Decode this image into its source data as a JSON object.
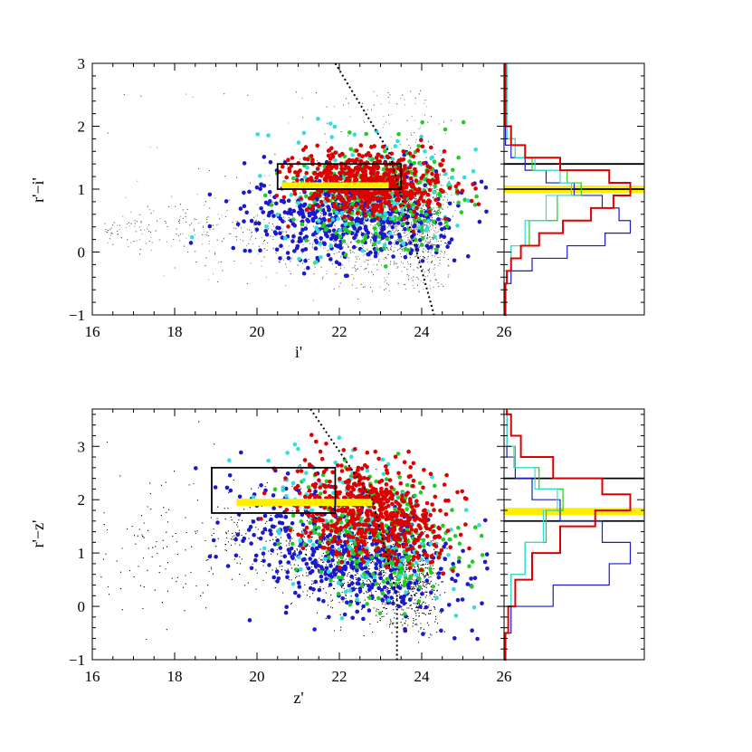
{
  "chart_data": [
    {
      "type": "scatter",
      "title": "",
      "xlabel": "i'",
      "ylabel": "r'−i'",
      "xlim": [
        16,
        26
      ],
      "ylim": [
        -1,
        3
      ],
      "xticks": [
        "16",
        "18",
        "20",
        "22",
        "24",
        "26"
      ],
      "yticks": [
        "−1",
        "0",
        "1",
        "2",
        "3"
      ],
      "grid": false,
      "legend": "none",
      "series_colors": {
        "field": "#000000",
        "red": "#dd0000",
        "green": "#22cc22",
        "blue": "#1a1acc",
        "cyan": "#33dddd",
        "band": "#ffee00"
      },
      "selection_box": {
        "x": [
          20.5,
          23.5
        ],
        "y": [
          1.0,
          1.4
        ]
      },
      "highlight_band": {
        "x": [
          20.6,
          23.2
        ],
        "y": 1.05
      },
      "completeness_line": [
        [
          21.9,
          3.0
        ],
        [
          23.2,
          1.6
        ],
        [
          24.3,
          -1.0
        ]
      ],
      "histogram": {
        "black_lines": [
          1.4,
          1.0
        ],
        "yellow_band": 1.0,
        "red": [
          [
            -1,
            0.01
          ],
          [
            -0.5,
            0.02
          ],
          [
            -0.3,
            0.05
          ],
          [
            -0.1,
            0.12
          ],
          [
            0.1,
            0.25
          ],
          [
            0.3,
            0.42
          ],
          [
            0.5,
            0.62
          ],
          [
            0.7,
            0.78
          ],
          [
            0.9,
            0.9
          ],
          [
            1.1,
            0.75
          ],
          [
            1.3,
            0.4
          ],
          [
            1.5,
            0.15
          ],
          [
            1.7,
            0.05
          ],
          [
            2.0,
            0.01
          ]
        ],
        "blue": [
          [
            -0.5,
            0.05
          ],
          [
            -0.3,
            0.2
          ],
          [
            -0.1,
            0.45
          ],
          [
            0.1,
            0.72
          ],
          [
            0.3,
            0.9
          ],
          [
            0.5,
            0.82
          ],
          [
            0.7,
            0.7
          ],
          [
            0.9,
            0.5
          ],
          [
            1.1,
            0.3
          ],
          [
            1.3,
            0.15
          ],
          [
            1.5,
            0.05
          ],
          [
            1.7,
            0.01
          ]
        ],
        "green": [
          [
            -0.3,
            0.05
          ],
          [
            0.1,
            0.18
          ],
          [
            0.5,
            0.38
          ],
          [
            0.9,
            0.55
          ],
          [
            1.1,
            0.45
          ],
          [
            1.3,
            0.2
          ],
          [
            1.5,
            0.08
          ],
          [
            1.8,
            0.02
          ]
        ],
        "cyan": [
          [
            -0.3,
            0.05
          ],
          [
            0.1,
            0.15
          ],
          [
            0.5,
            0.3
          ],
          [
            0.9,
            0.48
          ],
          [
            1.1,
            0.4
          ],
          [
            1.3,
            0.22
          ],
          [
            1.5,
            0.08
          ],
          [
            1.8,
            0.02
          ]
        ]
      }
    },
    {
      "type": "scatter",
      "title": "",
      "xlabel": "z'",
      "ylabel": "r'−z'",
      "xlim": [
        16,
        26
      ],
      "ylim": [
        -1,
        3.7
      ],
      "xticks": [
        "16",
        "18",
        "20",
        "22",
        "24",
        "26"
      ],
      "yticks": [
        "−1",
        "0",
        "1",
        "2",
        "3"
      ],
      "grid": false,
      "legend": "none",
      "series_colors": {
        "field": "#000000",
        "red": "#dd0000",
        "green": "#22cc22",
        "blue": "#1a1acc",
        "cyan": "#33dddd",
        "band": "#ffee00"
      },
      "selection_box": {
        "x": [
          18.9,
          21.9
        ],
        "y": [
          1.75,
          2.6
        ]
      },
      "highlight_band": {
        "x": [
          19.5,
          22.8
        ],
        "y": 1.95
      },
      "completeness_line": [
        [
          21.3,
          3.7
        ],
        [
          22.8,
          2.0
        ],
        [
          23.4,
          0.2
        ],
        [
          23.4,
          -1.0
        ]
      ],
      "histogram": {
        "black_lines": [
          2.4,
          1.6
        ],
        "yellow_band": 1.78,
        "red": [
          [
            -1,
            0.01
          ],
          [
            -0.5,
            0.03
          ],
          [
            0,
            0.08
          ],
          [
            0.5,
            0.2
          ],
          [
            1.0,
            0.4
          ],
          [
            1.5,
            0.65
          ],
          [
            1.8,
            0.9
          ],
          [
            2.1,
            0.7
          ],
          [
            2.4,
            0.35
          ],
          [
            2.8,
            0.12
          ],
          [
            3.2,
            0.05
          ],
          [
            3.6,
            0.02
          ]
        ],
        "blue": [
          [
            -0.5,
            0.05
          ],
          [
            0,
            0.35
          ],
          [
            0.4,
            0.75
          ],
          [
            0.8,
            0.9
          ],
          [
            1.2,
            0.7
          ],
          [
            1.6,
            0.4
          ],
          [
            2.0,
            0.2
          ],
          [
            2.4,
            0.08
          ],
          [
            2.8,
            0.02
          ]
        ],
        "green": [
          [
            0,
            0.05
          ],
          [
            0.6,
            0.15
          ],
          [
            1.2,
            0.3
          ],
          [
            1.8,
            0.42
          ],
          [
            2.2,
            0.25
          ],
          [
            2.6,
            0.08
          ],
          [
            3.0,
            0.02
          ]
        ],
        "cyan": [
          [
            0,
            0.05
          ],
          [
            0.6,
            0.15
          ],
          [
            1.2,
            0.28
          ],
          [
            1.8,
            0.38
          ],
          [
            2.2,
            0.22
          ],
          [
            2.6,
            0.07
          ],
          [
            3.0,
            0.02
          ]
        ]
      }
    }
  ]
}
